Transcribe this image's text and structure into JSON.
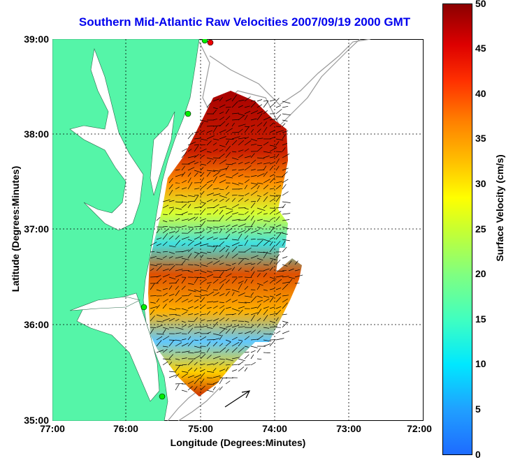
{
  "title": "Southern Mid-Atlantic Raw Velocities 2007/09/19 2000 GMT",
  "x_axis": {
    "label": "Longitude (Degrees:Minutes)",
    "ticks": [
      "77:00",
      "76:00",
      "75:00",
      "74:00",
      "73:00",
      "72:00"
    ]
  },
  "y_axis": {
    "label": "Latitude (Degrees:Minutes)",
    "ticks": [
      "39:00",
      "38:00",
      "37:00",
      "36:00",
      "35:00"
    ]
  },
  "colorbar": {
    "label": "Surface Velocity (cm/s)",
    "ticks": [
      "50",
      "45",
      "40",
      "35",
      "30",
      "25",
      "20",
      "15",
      "10",
      "5",
      "0"
    ],
    "range": [
      0,
      50
    ]
  },
  "colors": {
    "land": "#55f5a8",
    "title": "#0000ee",
    "bathymetry": "#999999",
    "site_green": "#00ee00",
    "site_red": "#ee0000"
  },
  "chart_data": {
    "type": "heatmap",
    "xlim": [
      -77.0,
      -72.0
    ],
    "ylim": [
      35.0,
      39.0
    ],
    "grid": true,
    "sites": [
      {
        "lon": -75.12,
        "lat": 39.0,
        "color": "red"
      },
      {
        "lon": -75.18,
        "lat": 38.98,
        "color": "green"
      },
      {
        "lon": -75.17,
        "lat": 38.22,
        "color": "green"
      },
      {
        "lon": -75.7,
        "lat": 36.18,
        "color": "green"
      },
      {
        "lon": -75.47,
        "lat": 35.25,
        "color": "green"
      }
    ]
  }
}
